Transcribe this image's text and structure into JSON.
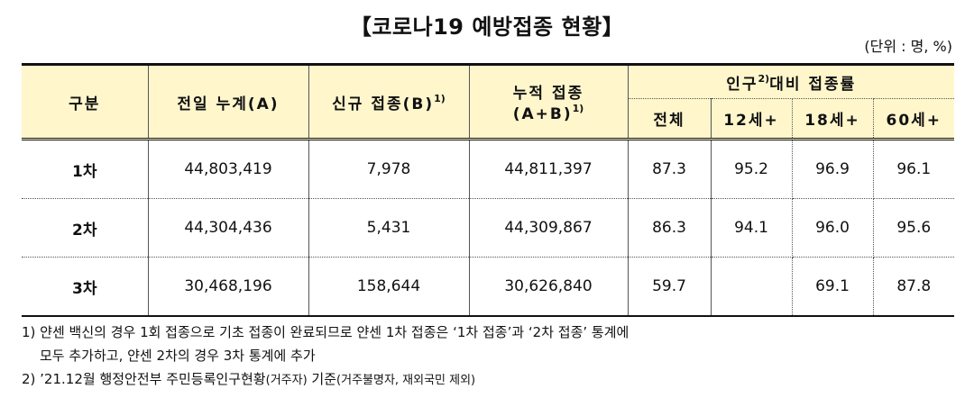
{
  "title": "【코로나19 예방접종 현황】",
  "unit": "(단위 : 명, %)",
  "headers": {
    "category": "구분",
    "prev_cumulative": "전일 누계(A)",
    "new_vacc": "신규 접종(B)",
    "new_vacc_sup": "1)",
    "cumulative_line1": "누적 접종",
    "cumulative_line2": "(A+B)",
    "cumulative_sup": "1)",
    "population_label": "인구",
    "population_sup": "2)",
    "population_label2": "대비 접종률",
    "all": "전체",
    "age12": "12세+",
    "age18": "18세+",
    "age60": "60세+"
  },
  "rows": [
    {
      "label": "1차",
      "prev": "44,803,419",
      "new": "7,978",
      "cum": "44,811,397",
      "all": "87.3",
      "age12": "95.2",
      "age18": "96.9",
      "age60": "96.1"
    },
    {
      "label": "2차",
      "prev": "44,304,436",
      "new": "5,431",
      "cum": "44,309,867",
      "all": "86.3",
      "age12": "94.1",
      "age18": "96.0",
      "age60": "95.6"
    },
    {
      "label": "3차",
      "prev": "30,468,196",
      "new": "158,644",
      "cum": "30,626,840",
      "all": "59.7",
      "age12": "",
      "age18": "69.1",
      "age60": "87.8"
    }
  ],
  "notes": {
    "note1_line1": "1) 얀센 백신의 경우 1회 접종으로 기초 접종이 완료되므로 얀센 1차 접종은 ‘1차 접종’과 ‘2차 접종’ 통계에",
    "note1_line2": "모두 추가하고, 얀센 2차의 경우 3차 통계에 추가",
    "note2_main": "2) ’21.12월 행정안전부 주민등록인구현황",
    "note2_paren1": "(거주자)",
    "note2_mid": " 기준",
    "note2_paren2": "(거주불명자, 재외국민 제외)"
  }
}
